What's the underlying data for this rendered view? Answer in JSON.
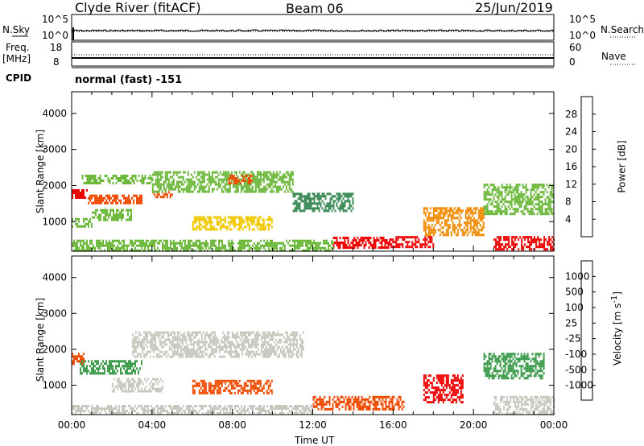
{
  "header": {
    "station": "Clyde River (fitACF)",
    "beam": "Beam 06",
    "date": "25/Jun/2019"
  },
  "mode_line": "normal (fast) -151",
  "panels": {
    "nsky": {
      "left_label": "N.Sky",
      "right_label": "N.Search",
      "left_ticks": [
        "10^5",
        "10^0"
      ],
      "right_ticks": [
        "10^5",
        "10^0"
      ]
    },
    "freq": {
      "left_label": "Freq.",
      "left_unit": "[MHz]",
      "right_label": "Nave",
      "left_ticks": [
        "18",
        "8"
      ],
      "right_ticks": [
        "60",
        "0"
      ]
    },
    "cpid_label": "CPID"
  },
  "colors": {
    "power_scale": [
      "#1a1aff",
      "#2a56a8",
      "#3e8c58",
      "#6cb83a",
      "#f0c800",
      "#f08a00",
      "#f04a00",
      "#ee0000"
    ],
    "velocity_scale": [
      "#ee0000",
      "#f04a00",
      "#f08a00",
      "#f0c000",
      "#c8c8c0",
      "#7acc3a",
      "#3a9a4a",
      "#2a5aa8",
      "#1a1aff"
    ],
    "ground_scatter": "#c8c8c0"
  },
  "chart_data": [
    {
      "type": "heatmap",
      "title": "Power",
      "xlabel": "Time UT",
      "ylabel": "Slant Range [km]",
      "xlim": [
        0,
        24
      ],
      "ylim": [
        180,
        4600
      ],
      "x_ticks": [
        "00:00",
        "04:00",
        "08:00",
        "12:00",
        "16:00",
        "20:00",
        "00:00"
      ],
      "y_ticks": [
        1000,
        2000,
        3000,
        4000
      ],
      "colorbar": {
        "label": "Power [dB]",
        "ticks": [
          "28",
          "24",
          "20",
          "16",
          "12",
          "8",
          "4"
        ],
        "range": [
          0,
          30
        ]
      },
      "regions": [
        {
          "t": [
            0.0,
            0.8
          ],
          "r": [
            1650,
            1900
          ],
          "v": 27
        },
        {
          "t": [
            0.8,
            3.5
          ],
          "r": [
            1500,
            1750
          ],
          "v": 24
        },
        {
          "t": [
            4.0,
            5.0
          ],
          "r": [
            1650,
            1850
          ],
          "v": 26
        },
        {
          "t": [
            0.5,
            4.0
          ],
          "r": [
            2050,
            2300
          ],
          "v": 12
        },
        {
          "t": [
            4.0,
            11.0
          ],
          "r": [
            1850,
            2400
          ],
          "v": 14
        },
        {
          "t": [
            7.8,
            9.0
          ],
          "r": [
            2050,
            2300
          ],
          "v": 26
        },
        {
          "t": [
            0.0,
            1.0
          ],
          "r": [
            850,
            1100
          ],
          "v": 12
        },
        {
          "t": [
            1.0,
            3.0
          ],
          "r": [
            1050,
            1350
          ],
          "v": 13
        },
        {
          "t": [
            6.0,
            10.0
          ],
          "r": [
            800,
            1150
          ],
          "v": 15
        },
        {
          "t": [
            13.0,
            15.8
          ],
          "r": [
            250,
            580
          ],
          "v": 28
        },
        {
          "t": [
            15.8,
            18.0
          ],
          "r": [
            300,
            600
          ],
          "v": 27
        },
        {
          "t": [
            17.5,
            20.5
          ],
          "r": [
            600,
            1400
          ],
          "v": 20
        },
        {
          "t": [
            21.0,
            24.0
          ],
          "r": [
            250,
            600
          ],
          "v": 28
        },
        {
          "t": [
            20.5,
            24.0
          ],
          "r": [
            1200,
            2050
          ],
          "v": 12
        },
        {
          "t": [
            11.0,
            14.0
          ],
          "r": [
            1300,
            1800
          ],
          "v": 8
        },
        {
          "t": [
            0.0,
            13.0
          ],
          "r": [
            220,
            500
          ],
          "v": 12
        }
      ]
    },
    {
      "type": "heatmap",
      "title": "Velocity",
      "xlabel": "Time UT",
      "ylabel": "Slant Range [km]",
      "xlim": [
        0,
        24
      ],
      "ylim": [
        180,
        4600
      ],
      "x_ticks": [
        "00:00",
        "04:00",
        "08:00",
        "12:00",
        "16:00",
        "20:00",
        "00:00"
      ],
      "y_ticks": [
        1000,
        2000,
        3000,
        4000
      ],
      "colorbar": {
        "label": "Velocity [m s-1]",
        "ticks": [
          "1000",
          "500",
          "100",
          "25",
          "-25",
          "-100",
          "-500",
          "-1000"
        ],
        "range": [
          -1250,
          1250
        ]
      },
      "regions": [
        {
          "t": [
            3.0,
            11.5
          ],
          "r": [
            1800,
            2500
          ],
          "v": 0
        },
        {
          "t": [
            0.0,
            0.6
          ],
          "r": [
            1600,
            1900
          ],
          "v": -200
        },
        {
          "t": [
            0.4,
            3.5
          ],
          "r": [
            1300,
            1700
          ],
          "v": 150
        },
        {
          "t": [
            6.0,
            10.0
          ],
          "r": [
            800,
            1150
          ],
          "v": -350
        },
        {
          "t": [
            12.0,
            16.5
          ],
          "r": [
            350,
            700
          ],
          "v": -400
        },
        {
          "t": [
            17.5,
            19.5
          ],
          "r": [
            500,
            1300
          ],
          "v": -600
        },
        {
          "t": [
            21.0,
            24.0
          ],
          "r": [
            200,
            700
          ],
          "v": 0
        },
        {
          "t": [
            20.5,
            23.5
          ],
          "r": [
            1200,
            1900
          ],
          "v": 300
        },
        {
          "t": [
            2.0,
            4.5
          ],
          "r": [
            850,
            1200
          ],
          "v": 0
        },
        {
          "t": [
            0.0,
            12.0
          ],
          "r": [
            200,
            450
          ],
          "v": 0
        }
      ]
    }
  ]
}
